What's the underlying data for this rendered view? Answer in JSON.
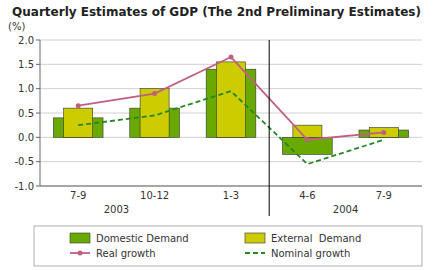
{
  "chart_data": {
    "type": "bar",
    "title": "Quarterly Estimates of GDP (The 2nd Preliminary Estimates)",
    "y_label": "(%)",
    "categories": [
      "7-9",
      "10-12",
      "1-3",
      "4-6",
      "7-9"
    ],
    "series": [
      {
        "name": "Domestic Demand",
        "type": "bar",
        "color": "#6aaa00",
        "values": [
          0.4,
          0.6,
          1.4,
          -0.35,
          0.15
        ]
      },
      {
        "name": "External  Demand",
        "type": "bar",
        "color": "#cccc00",
        "values": [
          0.6,
          1.0,
          1.55,
          0.25,
          0.2
        ]
      },
      {
        "name": "Real growth",
        "type": "line",
        "color": "#c06080",
        "marker": "circle",
        "line_style": "solid",
        "values": [
          0.65,
          0.9,
          1.65,
          -0.05,
          0.1
        ]
      },
      {
        "name": "Nominal growth",
        "type": "line",
        "color": "#228822",
        "line_style": "dashed",
        "values": [
          0.25,
          0.45,
          0.95,
          -0.55,
          -0.05
        ]
      }
    ],
    "ylim": [
      -1.0,
      2.0
    ],
    "yticks": [
      {
        "value": -1.0,
        "label": "-1.0"
      },
      -0.5,
      {
        "value": 0.0,
        "label": "0.0"
      },
      0.5,
      {
        "value": 1.0,
        "label": "1.0"
      },
      1.5,
      {
        "value": 2.0,
        "label": "2.0"
      }
    ],
    "grid": true,
    "legend": "bottom",
    "annotations": [
      {
        "text": "2003",
        "x": 0.5
      },
      {
        "text": "2004",
        "x": 3.5
      },
      {
        "type": "line",
        "x": 2.5
      }
    ]
  }
}
